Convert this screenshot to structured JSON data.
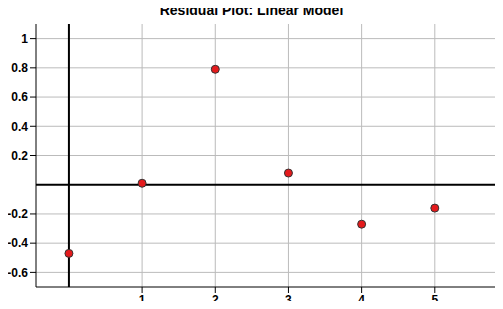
{
  "chart_data": {
    "type": "scatter",
    "title": "Residual Plot: Linear Model",
    "x": [
      0,
      1,
      2,
      3,
      4,
      5
    ],
    "values": [
      -0.47,
      0.01,
      0.79,
      0.08,
      -0.27,
      -0.16
    ],
    "color": "#e41a1c",
    "marker": "circle",
    "xlim": [
      -0.45,
      5.85
    ],
    "ylim": [
      -0.7,
      1.1
    ],
    "xticks": [
      1,
      2,
      3,
      4,
      5
    ],
    "yticks": [
      -0.6,
      -0.4,
      -0.2,
      0.2,
      0.4,
      0.6,
      0.8,
      1
    ],
    "grid": true
  }
}
